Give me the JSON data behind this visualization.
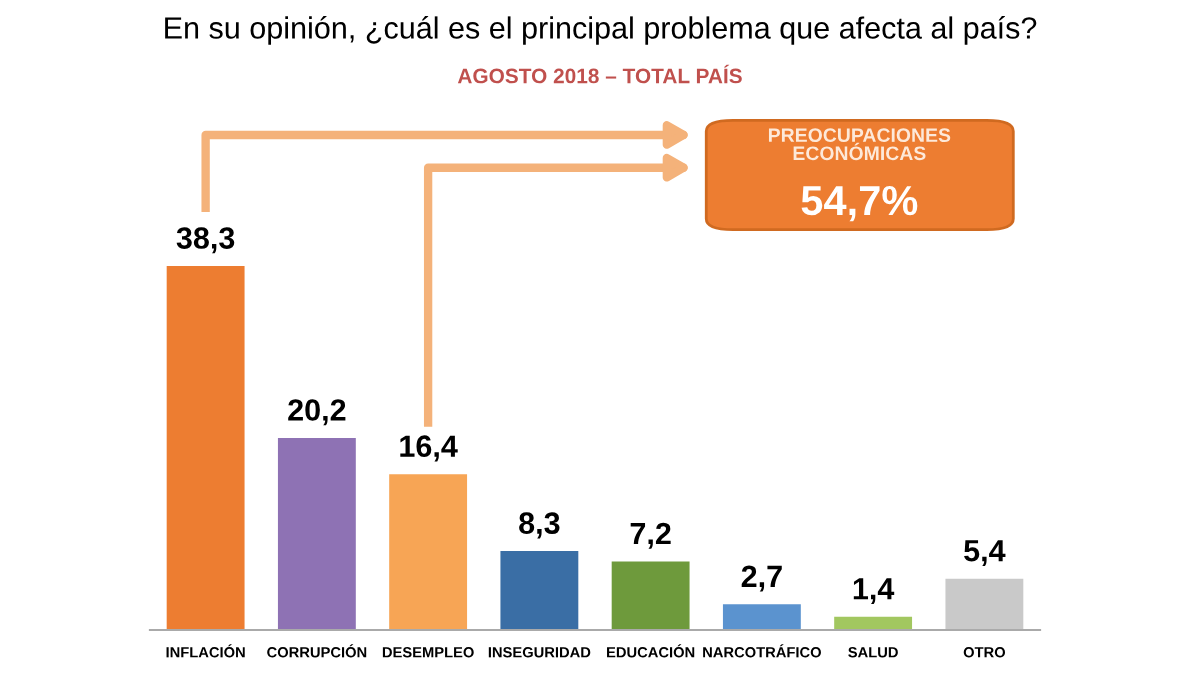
{
  "chart_data": {
    "type": "bar",
    "title": "En su opinión, ¿cuál es el principal problema que afecta al país?",
    "subtitle": "AGOSTO 2018 – TOTAL PAÍS",
    "categories": [
      "INFLACIÓN",
      "CORRUPCIÓN",
      "DESEMPLEO",
      "INSEGURIDAD",
      "EDUCACIÓN",
      "NARCOTRÁFICO",
      "SALUD",
      "OTRO"
    ],
    "values": [
      38.3,
      20.2,
      16.4,
      8.3,
      7.2,
      2.7,
      1.4,
      5.4
    ],
    "colors": [
      "#ed7d31",
      "#8e72b4",
      "#f7a555",
      "#3a6ea5",
      "#6e9a3c",
      "#5b93cf",
      "#a2c760",
      "#c9c9c9"
    ],
    "value_labels": [
      "38,3",
      "20,2",
      "16,4",
      "8,3",
      "7,2",
      "2,7",
      "1,4",
      "5,4"
    ],
    "annotations": [
      "PREOCUPACIONES ECONÓMICAS",
      "54,7%"
    ],
    "grid": false,
    "legend": false
  }
}
